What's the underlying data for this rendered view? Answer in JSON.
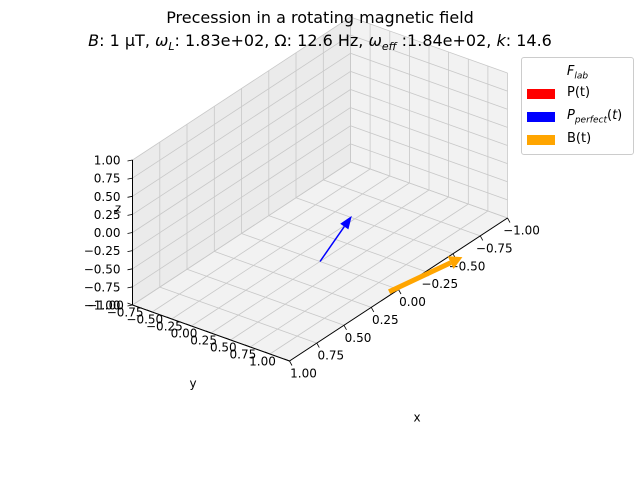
{
  "figure": {
    "title_line1": "Precession in a rotating magnetic field",
    "title_line2": "𝐵: 1 μT, ω_L: 1.83e+02, Ω: 12.6 Hz, ω_eff :1.84e+02, 𝑘: 14.6"
  },
  "legend": {
    "title": "F_lab",
    "entries": [
      {
        "label": "P(t)",
        "color": "#ff0000"
      },
      {
        "label": "P_perfect(t)",
        "color": "#0000ff"
      },
      {
        "label": "B(t)",
        "color": "#ffa500"
      }
    ]
  },
  "chart_data": {
    "type": "3d-quiver",
    "title": "Precession in a rotating magnetic field",
    "subtitle": "B: 1 μT, ω_L: 1.83e+02, Ω: 12.6 Hz, ω_eff :1.84e+02, k: 14.6",
    "xlabel": "x",
    "ylabel": "y",
    "zlabel": "z",
    "xlim": [
      -1,
      1
    ],
    "ylim": [
      -1,
      1
    ],
    "zlim": [
      -1,
      1
    ],
    "xticks": [
      "−1.00",
      "−0.75",
      "−0.50",
      "−0.25",
      "0.00",
      "0.25",
      "0.50",
      "0.75",
      "1.00"
    ],
    "yticks": [
      "−1.00",
      "−0.75",
      "−0.50",
      "−0.25",
      "0.00",
      "0.25",
      "0.50",
      "0.75",
      "1.00"
    ],
    "zticks": [
      "−1.00",
      "−0.75",
      "−0.50",
      "−0.25",
      "0.00",
      "0.25",
      "0.50",
      "0.75",
      "1.00"
    ],
    "grid": true,
    "legend_position": "top-right",
    "series": [
      {
        "name": "P_perfect(t)",
        "color": "#0000ff",
        "origin": [
          0,
          0,
          -1
        ],
        "vector": [
          -0.45,
          -0.22,
          0.1
        ]
      },
      {
        "name": "B(t)",
        "color": "#ffa500",
        "origin": [
          0.05,
          0.95,
          -1
        ],
        "vector": [
          -0.55,
          0.17,
          0.0
        ]
      }
    ]
  }
}
